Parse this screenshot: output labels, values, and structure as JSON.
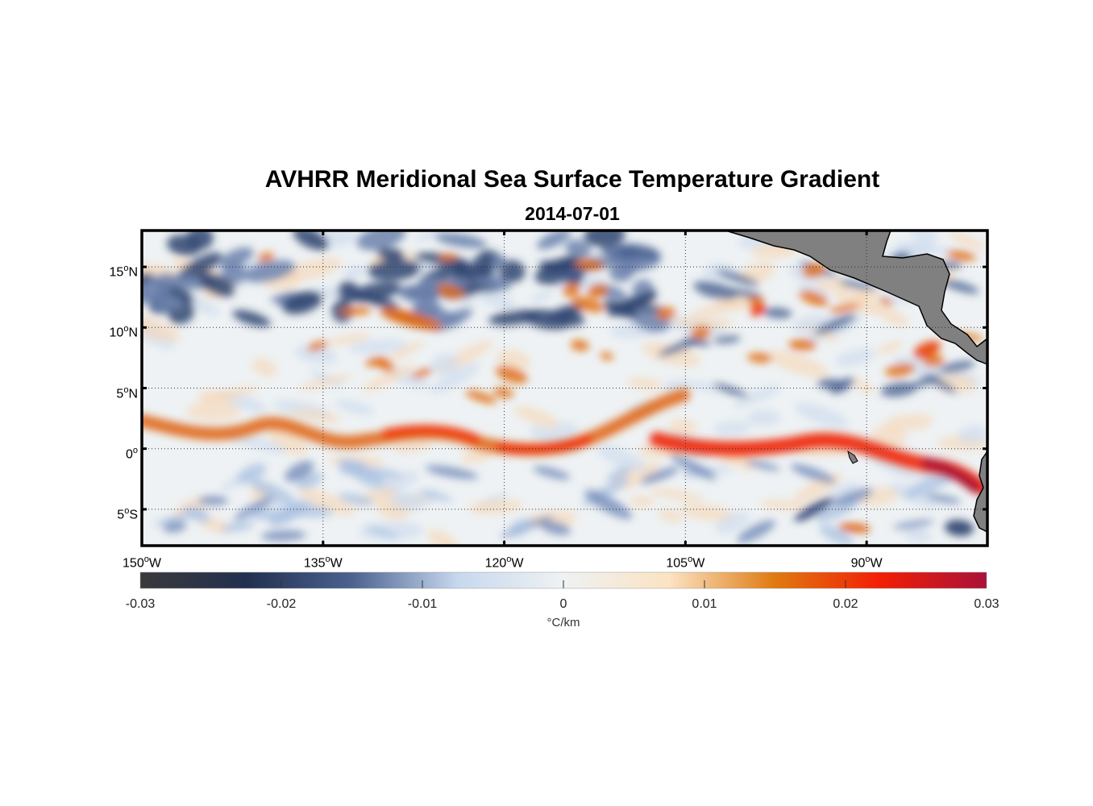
{
  "title": "AVHRR Meridional Sea Surface Temperature Gradient",
  "subtitle": "2014-07-01",
  "map": {
    "lon_range": [
      -150,
      -80
    ],
    "lat_range": [
      -8,
      18
    ],
    "lat_ticks": [
      {
        "value": 15,
        "num": "15",
        "hemi": "N"
      },
      {
        "value": 10,
        "num": "10",
        "hemi": "N"
      },
      {
        "value": 5,
        "num": "5",
        "hemi": "N"
      },
      {
        "value": 0,
        "num": "0",
        "hemi": ""
      },
      {
        "value": -5,
        "num": "5",
        "hemi": "S"
      }
    ],
    "lon_ticks": [
      {
        "value": -150,
        "num": "150",
        "hemi": "W"
      },
      {
        "value": -135,
        "num": "135",
        "hemi": "W"
      },
      {
        "value": -120,
        "num": "120",
        "hemi": "W"
      },
      {
        "value": -105,
        "num": "105",
        "hemi": "W"
      },
      {
        "value": -90,
        "num": "90",
        "hemi": "W"
      }
    ],
    "degree_symbol": "o",
    "land_color": "#808080",
    "gridlines": "dotted"
  },
  "colorbar": {
    "range": [
      -0.03,
      0.03
    ],
    "ticks": [
      "-0.03",
      "-0.02",
      "-0.01",
      "0",
      "0.01",
      "0.02",
      "0.03"
    ],
    "unit": "°C/km",
    "colors": [
      "#3a3a3c",
      "#22304f",
      "#4b628f",
      "#c7d8ee",
      "#eef2f3",
      "#fbe3c3",
      "#e07a10",
      "#f21e05",
      "#a8123a"
    ]
  }
}
